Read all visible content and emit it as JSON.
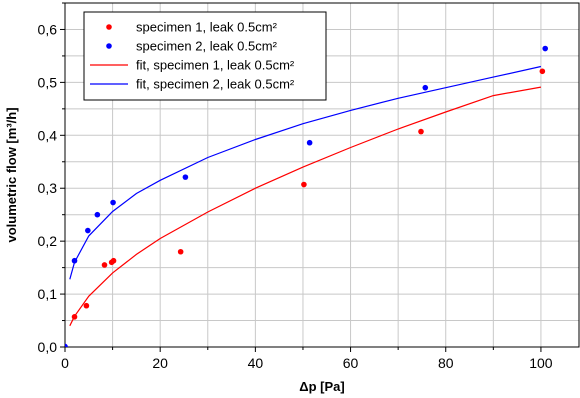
{
  "chart_data": {
    "type": "scatter",
    "xlabel": "Δp [Pa]",
    "ylabel": "volumetric flow [m³/h]",
    "xlim": [
      0,
      108
    ],
    "ylim": [
      0,
      0.65
    ],
    "x_ticks": [
      0,
      20,
      40,
      60,
      80,
      100
    ],
    "y_ticks": [
      0.0,
      0.1,
      0.2,
      0.3,
      0.4,
      0.5,
      0.6
    ],
    "x_tick_labels": [
      "0",
      "20",
      "40",
      "60",
      "80",
      "100"
    ],
    "y_tick_labels": [
      "0,0",
      "0,1",
      "0,2",
      "0,3",
      "0,4",
      "0,5",
      "0,6"
    ],
    "grid": true,
    "legend_position": "top-left",
    "series": [
      {
        "name": "specimen 1, leak 0.5cm²",
        "kind": "points",
        "color": "#ff0000",
        "x": [
          2,
          4.5,
          8.3,
          9.8,
          10.2,
          24.3,
          50.2,
          74.8,
          100.3
        ],
        "y": [
          0.057,
          0.078,
          0.155,
          0.16,
          0.163,
          0.18,
          0.307,
          0.407,
          0.521
        ]
      },
      {
        "name": "specimen 2, leak 0.5cm²",
        "kind": "points",
        "color": "#0000ff",
        "x": [
          0,
          2,
          4.8,
          6.8,
          10.1,
          25.3,
          51.4,
          75.7,
          100.9
        ],
        "y": [
          0.001,
          0.163,
          0.22,
          0.25,
          0.273,
          0.321,
          0.386,
          0.49,
          0.564
        ]
      },
      {
        "name": "fit, specimen 1, leak 0.5cm²",
        "kind": "line",
        "color": "#ff0000",
        "x": [
          1,
          2,
          5,
          10,
          15,
          20,
          30,
          40,
          50,
          60,
          70,
          80,
          90,
          100
        ],
        "y": [
          0.04,
          0.058,
          0.096,
          0.14,
          0.175,
          0.205,
          0.255,
          0.3,
          0.34,
          0.377,
          0.412,
          0.444,
          0.475,
          0.491
        ]
      },
      {
        "name": "fit, specimen 2, leak 0.5cm²",
        "kind": "line",
        "color": "#0000ff",
        "x": [
          1,
          2,
          5,
          10,
          15,
          20,
          30,
          40,
          50,
          60,
          70,
          80,
          90,
          100
        ],
        "y": [
          0.128,
          0.16,
          0.21,
          0.256,
          0.29,
          0.315,
          0.358,
          0.392,
          0.422,
          0.447,
          0.47,
          0.49,
          0.51,
          0.53
        ]
      }
    ]
  }
}
